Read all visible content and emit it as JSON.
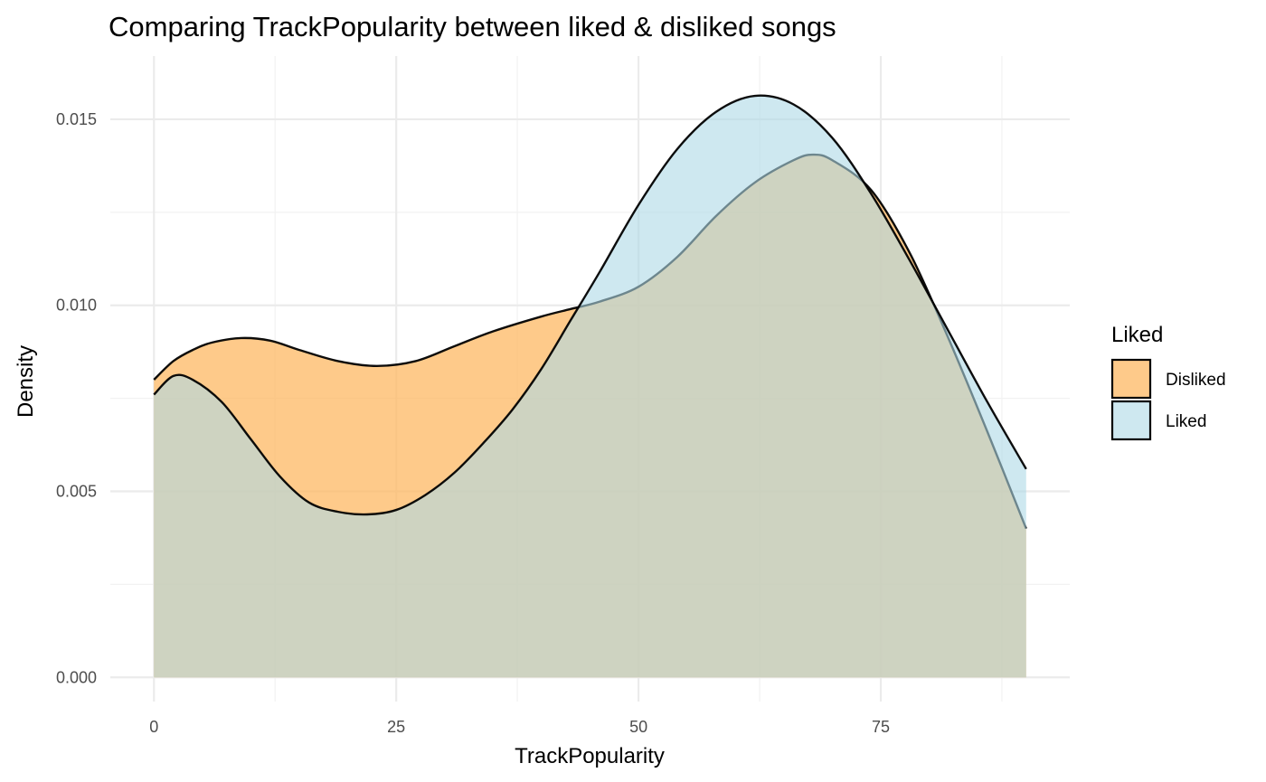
{
  "chart_data": {
    "type": "area",
    "title": "Comparing TrackPopularity between liked & disliked songs",
    "xlabel": "TrackPopularity",
    "ylabel": "Density",
    "xlim": [
      -4.5,
      94.5
    ],
    "ylim": [
      -0.00065,
      0.0167
    ],
    "x_ticks": [
      0,
      25,
      50,
      75
    ],
    "x_tick_labels": [
      "0",
      "25",
      "50",
      "75"
    ],
    "y_ticks": [
      0,
      0.005,
      0.01,
      0.015
    ],
    "y_tick_labels": [
      "0.000",
      "0.005",
      "0.010",
      "0.015"
    ],
    "grid": true,
    "legend": {
      "title": "Liked",
      "position": "right"
    },
    "series": [
      {
        "name": "Disliked",
        "color": "#FDB863",
        "opacity": 0.75,
        "x": [
          0,
          2,
          4,
          6,
          9,
          12,
          15,
          19,
          23,
          27,
          31,
          35,
          40,
          43,
          46,
          50,
          54,
          58,
          62,
          66,
          68,
          70,
          74,
          78,
          82,
          86,
          90
        ],
        "y": [
          0.008,
          0.0085,
          0.0088,
          0.009,
          0.00912,
          0.00905,
          0.0088,
          0.0085,
          0.00837,
          0.0085,
          0.0089,
          0.0093,
          0.0097,
          0.0099,
          0.0101,
          0.0105,
          0.0113,
          0.0124,
          0.0133,
          0.0139,
          0.01405,
          0.0139,
          0.0131,
          0.0114,
          0.0091,
          0.0066,
          0.004
        ]
      },
      {
        "name": "Liked",
        "color": "#ADD8E6",
        "opacity": 0.6,
        "x": [
          0,
          2,
          4,
          7,
          10,
          13,
          16,
          19,
          22,
          25,
          28,
          31,
          34,
          37,
          40,
          43,
          46,
          50,
          54,
          58,
          62,
          66,
          70,
          74,
          78,
          82,
          86,
          90
        ],
        "y": [
          0.0076,
          0.0081,
          0.008,
          0.0074,
          0.0064,
          0.0054,
          0.0047,
          0.00445,
          0.00438,
          0.0045,
          0.0049,
          0.0055,
          0.0063,
          0.0072,
          0.0083,
          0.0096,
          0.0109,
          0.0127,
          0.0142,
          0.0152,
          0.01563,
          0.0154,
          0.0145,
          0.013,
          0.0112,
          0.0093,
          0.0074,
          0.0056
        ]
      }
    ]
  }
}
